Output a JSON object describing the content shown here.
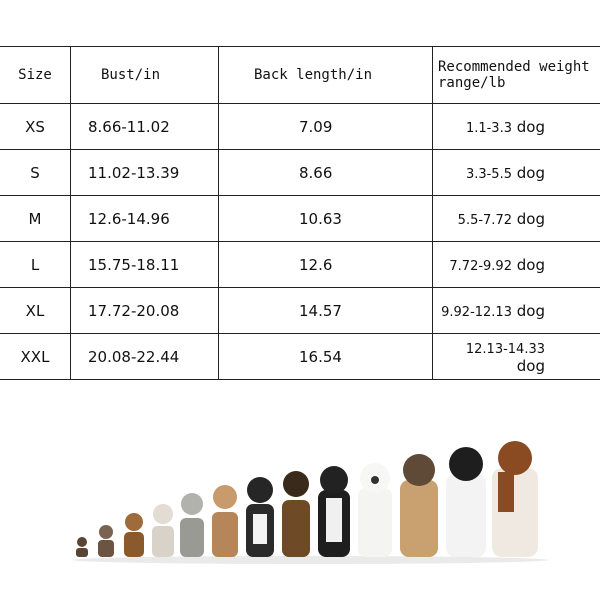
{
  "table": {
    "headers": [
      "Size",
      "Bust/in",
      "Back length/in",
      "Recommended weight range/lb"
    ],
    "rows": [
      {
        "size": "XS",
        "bust": "8.66-11.02",
        "back": "7.09",
        "range": "1.1-3.3",
        "unit": "dog"
      },
      {
        "size": "S",
        "bust": "11.02-13.39",
        "back": "8.66",
        "range": "3.3-5.5",
        "unit": "dog"
      },
      {
        "size": "M",
        "bust": "12.6-14.96",
        "back": "10.63",
        "range": "5.5-7.72",
        "unit": "dog"
      },
      {
        "size": "L",
        "bust": "15.75-18.11",
        "back": "12.6",
        "range": "7.72-9.92",
        "unit": "dog"
      },
      {
        "size": "XL",
        "bust": "17.72-20.08",
        "back": "14.57",
        "range": "9.92-12.13",
        "unit": "dog"
      },
      {
        "size": "XXL",
        "bust": "20.08-22.44",
        "back": "16.54",
        "range": "12.13-14.33",
        "unit": "dog"
      }
    ]
  }
}
